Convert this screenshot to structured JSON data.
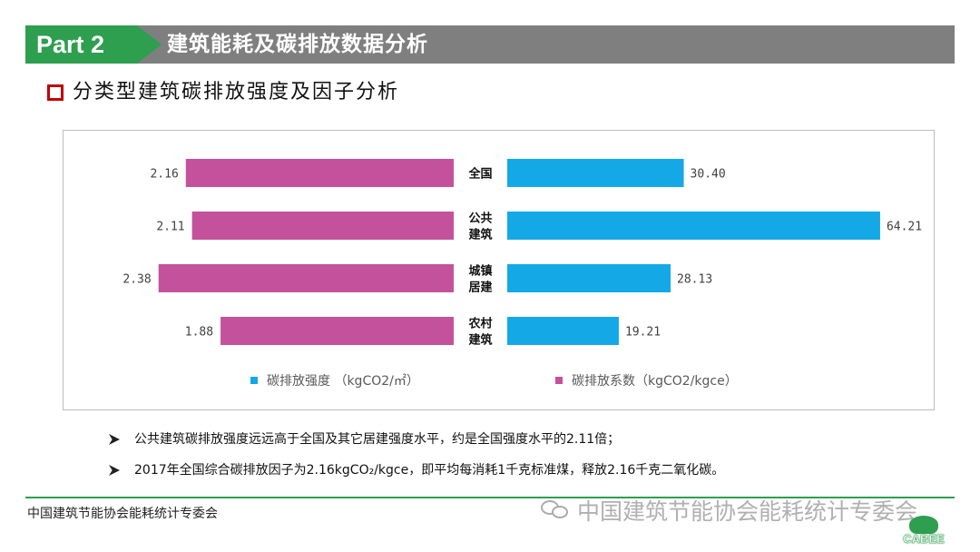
{
  "header": {
    "part_label": "Part 2",
    "title": "建筑能耗及碳排放数据分析"
  },
  "section": {
    "title": "分类型建筑碳排放强度及因子分析"
  },
  "chart_data": {
    "type": "bar",
    "orientation": "horizontal-butterfly",
    "categories": [
      "全国",
      "公共\n建筑",
      "城镇\n居建",
      "农村\n建筑"
    ],
    "series": [
      {
        "name": "碳排放系数（kgCO2/kgce）",
        "side": "left",
        "color": "#c4519c",
        "values": [
          2.16,
          2.11,
          2.38,
          1.88
        ],
        "labels": [
          "2.16",
          "2.11",
          "2.38",
          "1.88"
        ]
      },
      {
        "name": "碳排放强度 （kgCO2/㎡）",
        "side": "right",
        "color": "#14a9e6",
        "values": [
          30.4,
          64.21,
          28.13,
          19.21
        ],
        "labels": [
          "30.40",
          "64.21",
          "28.13",
          "19.21"
        ]
      }
    ],
    "left_max": 3.0,
    "right_max": 80,
    "grid": false,
    "legend_placement": "bottom"
  },
  "legend": {
    "intensity": "碳排放强度 （kgCO2/㎡）",
    "factor": "碳排放系数（kgCO2/kgce）",
    "intensity_color": "#14a9e6",
    "factor_color": "#c4519c"
  },
  "bullets": [
    "公共建筑碳排放强度远远高于全国及其它居建强度水平，约是全国强度水平的2.11倍；",
    "2017年全国综合碳排放因子为2.16kgCO₂/kgce，即平均每消耗1千克标准煤，释放2.16千克二氧化碳。"
  ],
  "footer": {
    "organization": "中国建筑节能协会能耗统计专委会",
    "watermark": "中国建筑节能协会能耗统计专委会",
    "logo_text": "CABEE"
  },
  "colors": {
    "brand_green": "#2e9e4f",
    "header_gray": "#7f7f7f",
    "marker_red": "#c00000"
  },
  "icons": {
    "section_marker": "hollow-square-icon",
    "bullet": "arrowhead-icon",
    "watermark": "wechat-icon"
  }
}
